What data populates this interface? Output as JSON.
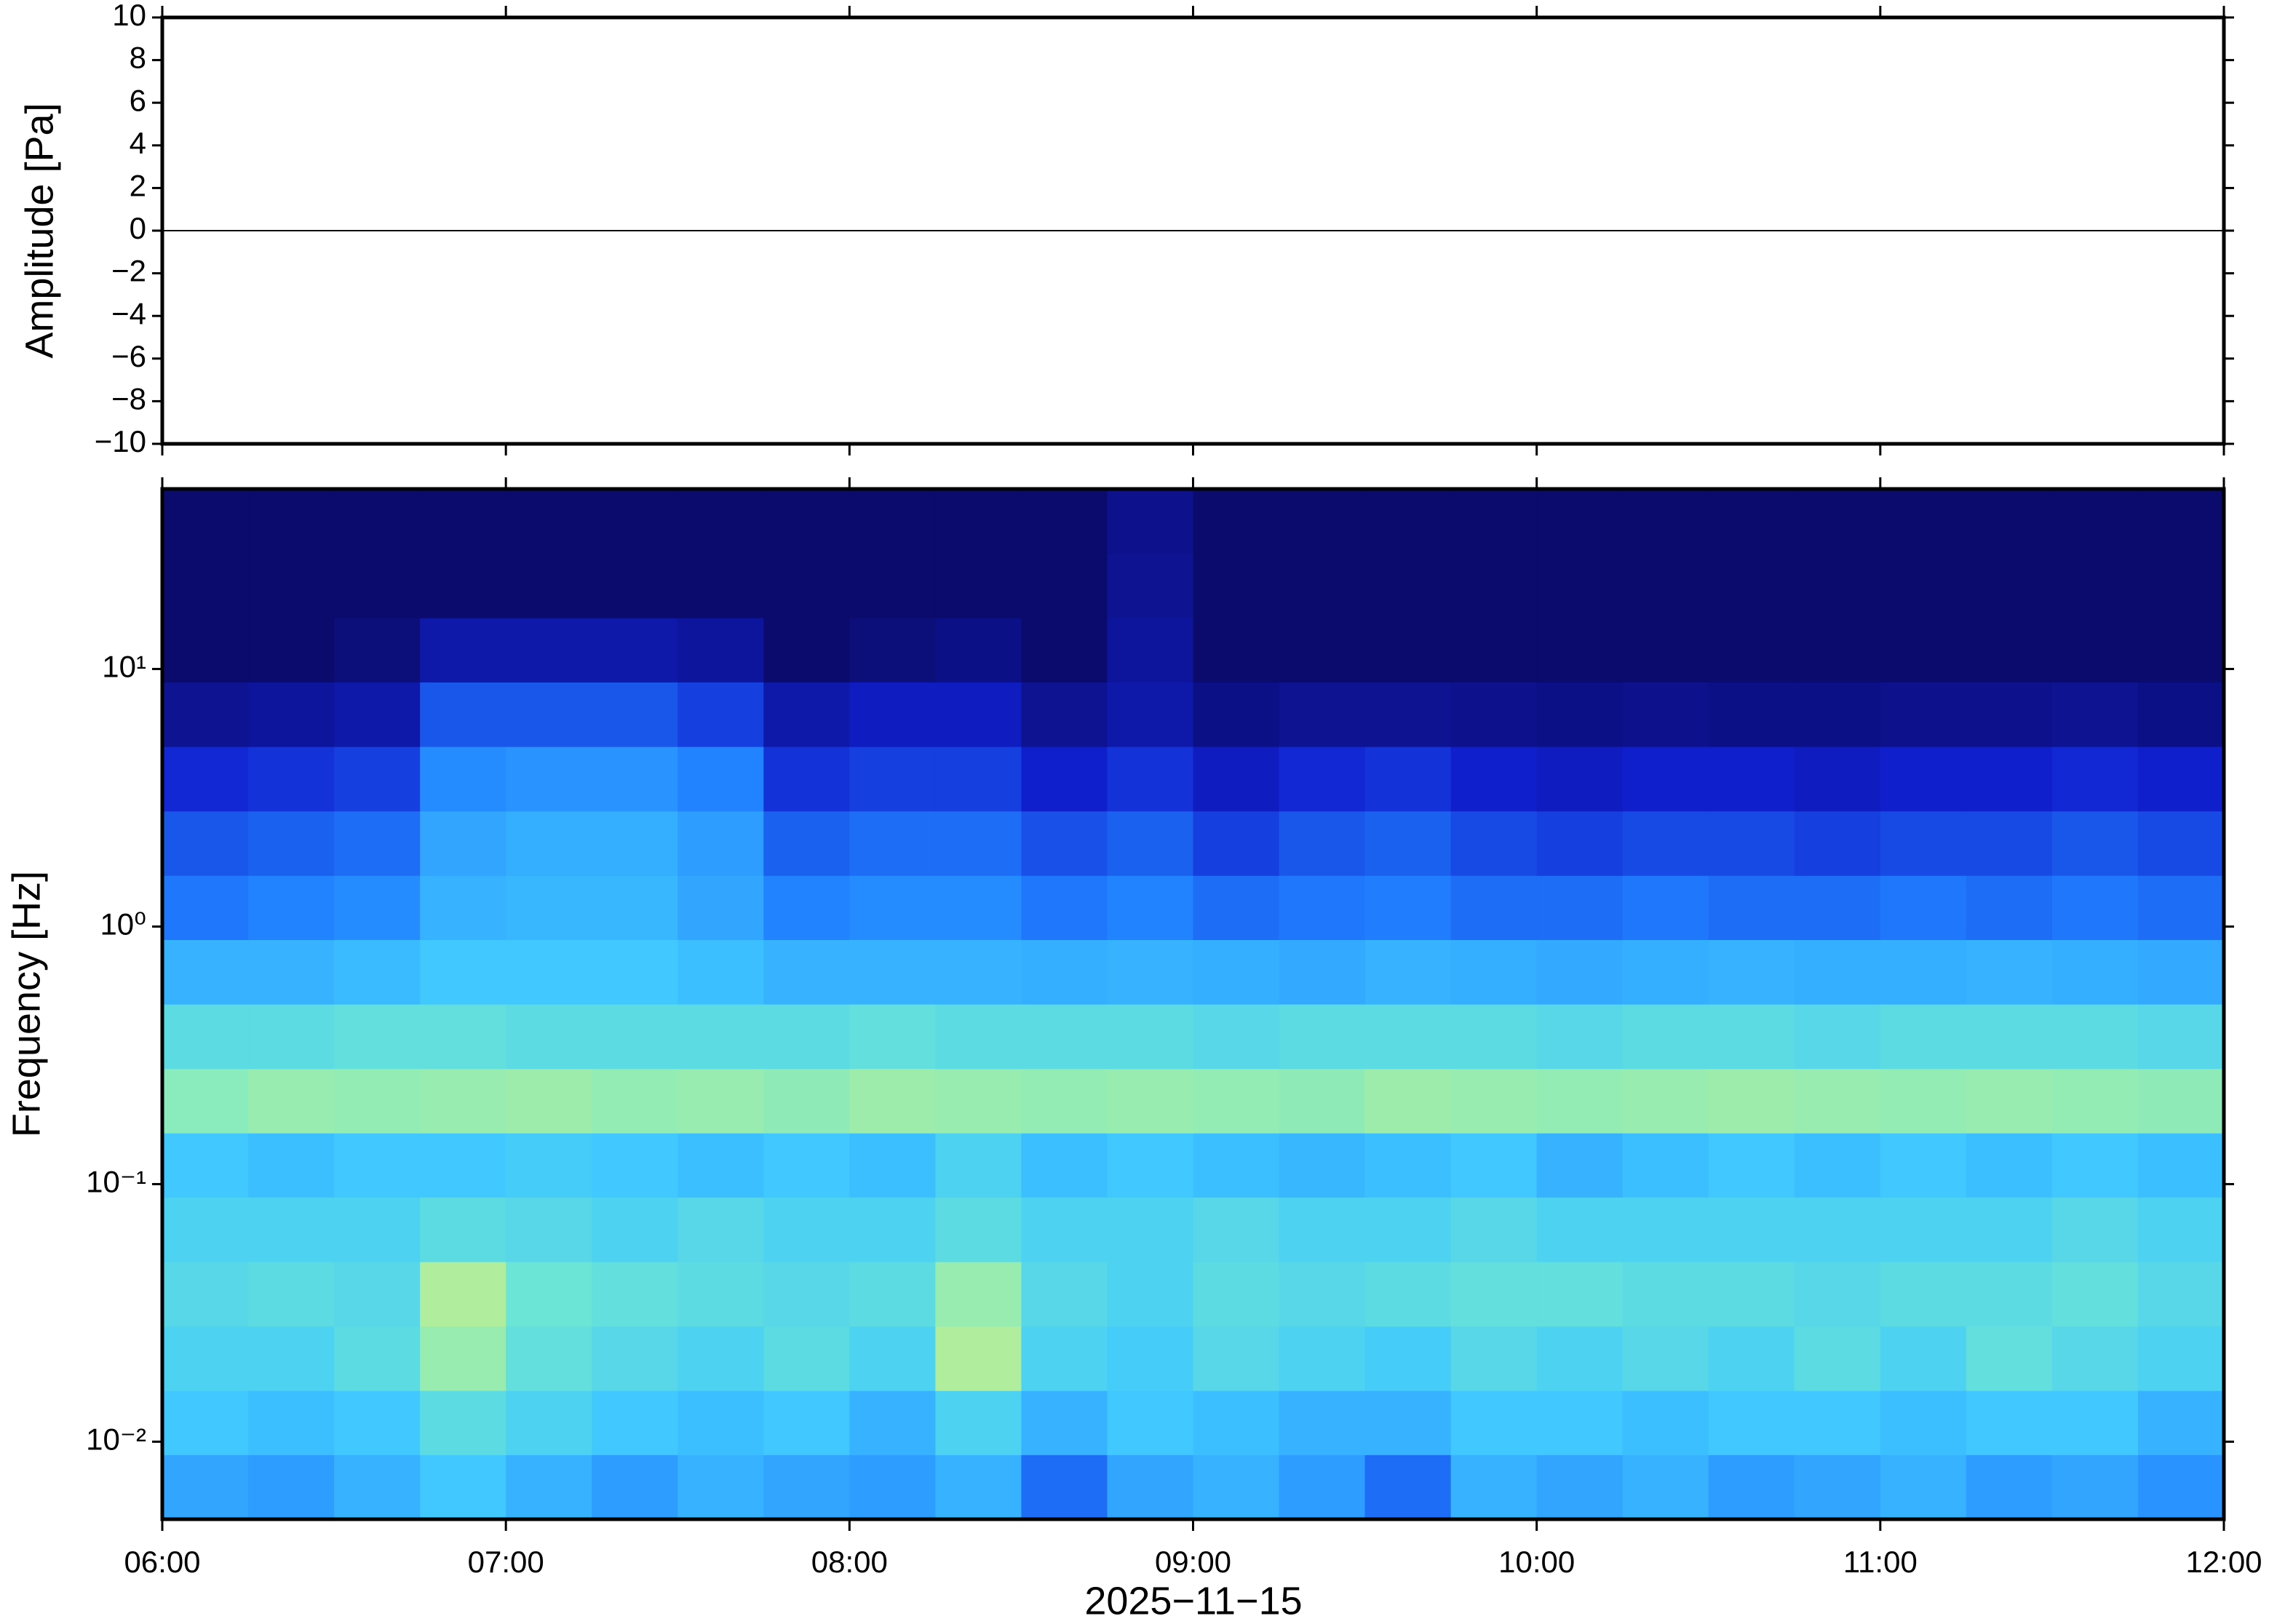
{
  "chart_data": [
    {
      "type": "line",
      "ylabel": "Amplitude [Pa]",
      "xlim": [
        6,
        12
      ],
      "ylim": [
        -10,
        10
      ],
      "xticks": [
        6,
        7,
        8,
        9,
        10,
        11,
        12
      ],
      "yticks": [
        {
          "value": -10,
          "label": "−10"
        },
        {
          "value": -8,
          "label": "−8"
        },
        {
          "value": -6,
          "label": "−6"
        },
        {
          "value": -4,
          "label": "−4"
        },
        {
          "value": -2,
          "label": "−2"
        },
        0,
        2,
        4,
        6,
        8,
        10
      ],
      "color": "#000000",
      "x": [
        6,
        6.5,
        7,
        7.5,
        8,
        8.5,
        9,
        9.5,
        10,
        10.5,
        11,
        11.5,
        12
      ],
      "values": [
        0,
        0,
        0,
        0,
        0,
        0,
        0,
        0,
        0,
        0,
        0,
        0,
        0
      ]
    },
    {
      "type": "heatmap",
      "ylabel": "Frequency [Hz]",
      "xlabel": "2025−11−15",
      "log_y": true,
      "xlim": [
        6,
        12
      ],
      "ylim": [
        0.005,
        50
      ],
      "xticks": [
        {
          "value": 6,
          "label": "06:00"
        },
        {
          "value": 7,
          "label": "07:00"
        },
        {
          "value": 8,
          "label": "08:00"
        },
        {
          "value": 9,
          "label": "09:00"
        },
        {
          "value": 10,
          "label": "10:00"
        },
        {
          "value": 11,
          "label": "11:00"
        },
        {
          "value": 12,
          "label": "12:00"
        }
      ],
      "yticks": [
        {
          "value": 0.01,
          "label": "10⁻²"
        },
        {
          "value": 0.1,
          "label": "10⁻¹"
        },
        {
          "value": 1,
          "label": "10⁰"
        },
        {
          "value": 10,
          "label": "10¹"
        }
      ],
      "colormap": [
        "#0b0b6e",
        "#1020d0",
        "#2080ff",
        "#40c8ff",
        "#70e8d0",
        "#c0f090",
        "#f0f080"
      ],
      "x_edges": [
        6,
        6.25,
        6.5,
        6.75,
        7,
        7.25,
        7.5,
        7.75,
        8,
        8.25,
        8.5,
        8.75,
        9,
        9.25,
        9.5,
        9.75,
        10,
        10.25,
        10.5,
        10.75,
        11,
        11.25,
        11.5,
        11.75,
        12
      ],
      "y_edges": [
        0.005,
        0.0089,
        0.0158,
        0.0281,
        0.05,
        0.089,
        0.158,
        0.281,
        0.5,
        0.89,
        1.58,
        2.81,
        5,
        8.9,
        15.8,
        28.1,
        50
      ],
      "z": [
        [
          0.42,
          0.4,
          0.45,
          0.5,
          0.45,
          0.4,
          0.45,
          0.42,
          0.4,
          0.45,
          0.3,
          0.42,
          0.45,
          0.4,
          0.3,
          0.45,
          0.42,
          0.45,
          0.4,
          0.42,
          0.45,
          0.4,
          0.42,
          0.38
        ],
        [
          0.5,
          0.48,
          0.5,
          0.6,
          0.55,
          0.5,
          0.48,
          0.5,
          0.45,
          0.55,
          0.45,
          0.5,
          0.48,
          0.45,
          0.45,
          0.5,
          0.5,
          0.48,
          0.5,
          0.5,
          0.48,
          0.5,
          0.5,
          0.45
        ],
        [
          0.55,
          0.55,
          0.6,
          0.75,
          0.62,
          0.58,
          0.55,
          0.6,
          0.55,
          0.8,
          0.55,
          0.52,
          0.58,
          0.55,
          0.52,
          0.58,
          0.55,
          0.58,
          0.55,
          0.6,
          0.55,
          0.62,
          0.58,
          0.55
        ],
        [
          0.58,
          0.6,
          0.58,
          0.8,
          0.65,
          0.62,
          0.6,
          0.58,
          0.6,
          0.75,
          0.58,
          0.55,
          0.6,
          0.58,
          0.6,
          0.62,
          0.62,
          0.6,
          0.6,
          0.58,
          0.6,
          0.6,
          0.62,
          0.58
        ],
        [
          0.55,
          0.55,
          0.55,
          0.6,
          0.58,
          0.55,
          0.58,
          0.55,
          0.55,
          0.6,
          0.55,
          0.55,
          0.58,
          0.55,
          0.55,
          0.58,
          0.55,
          0.55,
          0.55,
          0.55,
          0.55,
          0.55,
          0.58,
          0.55
        ],
        [
          0.5,
          0.48,
          0.5,
          0.5,
          0.52,
          0.5,
          0.48,
          0.5,
          0.48,
          0.55,
          0.48,
          0.5,
          0.48,
          0.46,
          0.48,
          0.5,
          0.45,
          0.48,
          0.5,
          0.48,
          0.5,
          0.48,
          0.5,
          0.48
        ],
        [
          0.72,
          0.75,
          0.74,
          0.75,
          0.76,
          0.74,
          0.75,
          0.73,
          0.76,
          0.75,
          0.74,
          0.75,
          0.74,
          0.73,
          0.76,
          0.75,
          0.74,
          0.75,
          0.76,
          0.75,
          0.74,
          0.75,
          0.74,
          0.73
        ],
        [
          0.6,
          0.6,
          0.62,
          0.62,
          0.6,
          0.6,
          0.6,
          0.6,
          0.62,
          0.6,
          0.6,
          0.6,
          0.58,
          0.6,
          0.6,
          0.6,
          0.58,
          0.6,
          0.6,
          0.58,
          0.6,
          0.6,
          0.6,
          0.58
        ],
        [
          0.45,
          0.45,
          0.47,
          0.5,
          0.5,
          0.5,
          0.48,
          0.45,
          0.45,
          0.45,
          0.44,
          0.45,
          0.44,
          0.43,
          0.45,
          0.44,
          0.43,
          0.44,
          0.45,
          0.44,
          0.44,
          0.45,
          0.44,
          0.43
        ],
        [
          0.32,
          0.34,
          0.36,
          0.45,
          0.46,
          0.46,
          0.42,
          0.34,
          0.36,
          0.36,
          0.32,
          0.34,
          0.3,
          0.32,
          0.33,
          0.3,
          0.3,
          0.32,
          0.3,
          0.3,
          0.32,
          0.3,
          0.32,
          0.3
        ],
        [
          0.26,
          0.28,
          0.3,
          0.42,
          0.44,
          0.44,
          0.4,
          0.28,
          0.3,
          0.3,
          0.25,
          0.28,
          0.22,
          0.26,
          0.28,
          0.24,
          0.22,
          0.24,
          0.24,
          0.22,
          0.24,
          0.24,
          0.26,
          0.24
        ],
        [
          0.18,
          0.2,
          0.22,
          0.36,
          0.38,
          0.38,
          0.34,
          0.2,
          0.22,
          0.22,
          0.16,
          0.2,
          0.14,
          0.18,
          0.2,
          0.16,
          0.14,
          0.16,
          0.16,
          0.14,
          0.16,
          0.16,
          0.18,
          0.16
        ],
        [
          0.06,
          0.08,
          0.1,
          0.26,
          0.26,
          0.26,
          0.22,
          0.1,
          0.14,
          0.14,
          0.06,
          0.1,
          0.04,
          0.06,
          0.06,
          0.05,
          0.04,
          0.05,
          0.04,
          0.04,
          0.05,
          0.05,
          0.06,
          0.04
        ],
        [
          0,
          0,
          0.02,
          0.1,
          0.1,
          0.1,
          0.08,
          0,
          0.02,
          0.04,
          0,
          0.08,
          0,
          0,
          0,
          0,
          0,
          0,
          0,
          0,
          0,
          0,
          0,
          0
        ],
        [
          0,
          0,
          0,
          0,
          0,
          0,
          0,
          0,
          0,
          0,
          0,
          0.06,
          0,
          0,
          0,
          0,
          0,
          0,
          0,
          0,
          0,
          0,
          0,
          0
        ],
        [
          0,
          0,
          0,
          0,
          0,
          0,
          0,
          0,
          0,
          0,
          0,
          0.05,
          0,
          0,
          0,
          0,
          0,
          0,
          0,
          0,
          0,
          0,
          0,
          0
        ]
      ]
    }
  ]
}
